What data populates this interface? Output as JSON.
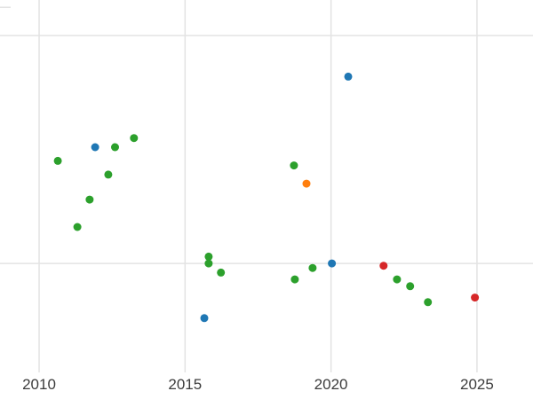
{
  "chart_data": {
    "type": "scatter",
    "title": "",
    "subtitle": "",
    "xlabel": "",
    "ylabel": "",
    "y_axis_labeled": false,
    "x_range": [
      2008.66,
      2026.92
    ],
    "y_range": [
      -0.595,
      1.156
    ],
    "x_ticks": [
      {
        "value": 2010,
        "label": "2010"
      },
      {
        "value": 2015,
        "label": "2015"
      },
      {
        "value": 2020,
        "label": "2020"
      },
      {
        "value": 2025,
        "label": "2025"
      }
    ],
    "grid": {
      "on": true,
      "color": "#e3e3e3",
      "vertical_x": [
        2010,
        2015,
        2020,
        2025
      ],
      "horizontal_y": [
        0.0,
        1.0
      ],
      "partial_top_tick_y": 1.124
    },
    "legend": {
      "visible": false
    },
    "marker": {
      "radius": 4.5
    },
    "tick_label_color": "#3c3c3c",
    "tick_label_size": 17,
    "background_color": "#ffffff",
    "series": [
      {
        "name": "green",
        "color": "#2ca02c",
        "points": [
          [
            2010.64,
            0.45
          ],
          [
            2011.31,
            0.16
          ],
          [
            2011.73,
            0.28
          ],
          [
            2012.37,
            0.39
          ],
          [
            2012.6,
            0.51
          ],
          [
            2013.25,
            0.55
          ],
          [
            2015.81,
            0.03
          ],
          [
            2015.81,
            0.0
          ],
          [
            2016.23,
            -0.04
          ],
          [
            2018.73,
            0.43
          ],
          [
            2018.76,
            -0.07
          ],
          [
            2019.37,
            -0.02
          ],
          [
            2022.26,
            -0.07
          ],
          [
            2022.71,
            -0.1
          ],
          [
            2023.32,
            -0.17
          ]
        ]
      },
      {
        "name": "blue",
        "color": "#1f77b4",
        "points": [
          [
            2011.92,
            0.51
          ],
          [
            2015.66,
            -0.24
          ],
          [
            2020.03,
            0.0
          ],
          [
            2020.59,
            0.82
          ]
        ]
      },
      {
        "name": "orange",
        "color": "#ff7f0e",
        "points": [
          [
            2019.16,
            0.35
          ]
        ]
      },
      {
        "name": "red",
        "color": "#d62728",
        "points": [
          [
            2021.8,
            -0.01
          ],
          [
            2024.93,
            -0.15
          ]
        ]
      }
    ]
  }
}
